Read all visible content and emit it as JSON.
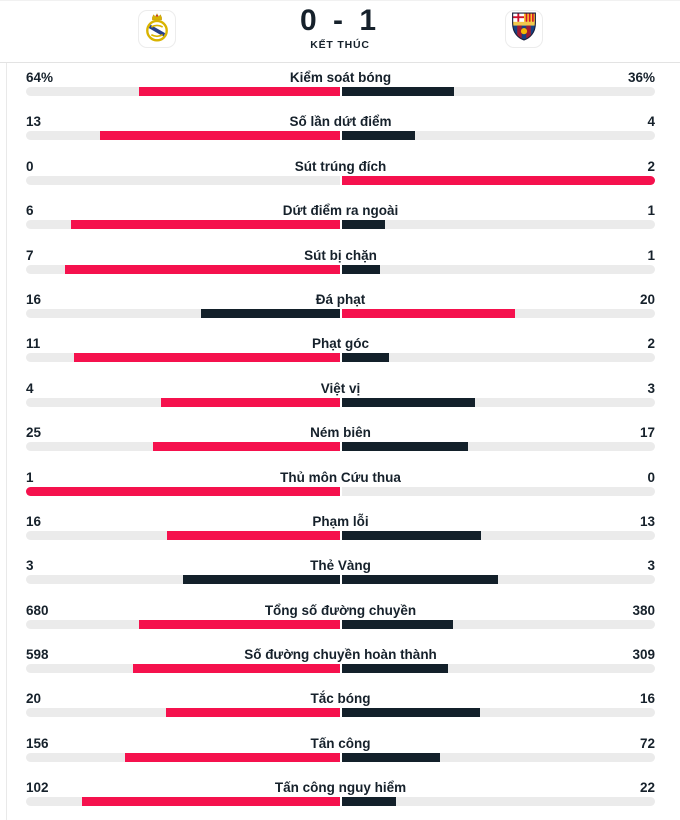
{
  "header": {
    "score": "0 - 1",
    "status": "KẾT THÚC",
    "home_logo_icon": "real-madrid-crest",
    "away_logo_icon": "barcelona-crest"
  },
  "colors": {
    "win_bar": "#f5114d",
    "loss_bar": "#13202a",
    "track": "#ebebeb",
    "text": "#16212b"
  },
  "chart_data": {
    "type": "bar",
    "layout": "head-to-head horizontal bars growing from center; each side length = value / (home + away); higher value shown red, lower value dark navy, tie both dark navy",
    "rows": [
      {
        "label": "Kiểm soát bóng",
        "home": 64,
        "away": 36,
        "home_display": "64%",
        "away_display": "36%"
      },
      {
        "label": "Số lần dứt điểm",
        "home": 13,
        "away": 4
      },
      {
        "label": "Sút trúng đích",
        "home": 0,
        "away": 2
      },
      {
        "label": "Dứt điểm ra ngoài",
        "home": 6,
        "away": 1
      },
      {
        "label": "Sút bị chặn",
        "home": 7,
        "away": 1
      },
      {
        "label": "Đá phạt",
        "home": 16,
        "away": 20
      },
      {
        "label": "Phạt góc",
        "home": 11,
        "away": 2
      },
      {
        "label": "Việt vị",
        "home": 4,
        "away": 3
      },
      {
        "label": "Ném biên",
        "home": 25,
        "away": 17
      },
      {
        "label": "Thủ môn Cứu thua",
        "home": 1,
        "away": 0
      },
      {
        "label": "Phạm lỗi",
        "home": 16,
        "away": 13
      },
      {
        "label": "Thẻ Vàng",
        "home": 3,
        "away": 3
      },
      {
        "label": "Tổng số đường chuyền",
        "home": 680,
        "away": 380
      },
      {
        "label": "Số đường chuyền hoàn thành",
        "home": 598,
        "away": 309
      },
      {
        "label": "Tắc bóng",
        "home": 20,
        "away": 16
      },
      {
        "label": "Tấn công",
        "home": 156,
        "away": 72
      },
      {
        "label": "Tấn công nguy hiểm",
        "home": 102,
        "away": 22
      }
    ]
  }
}
